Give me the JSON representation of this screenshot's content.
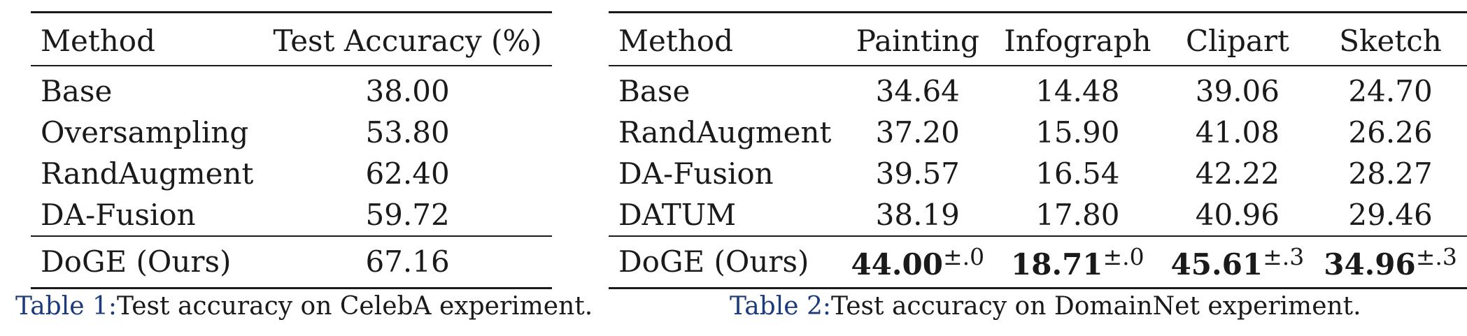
{
  "table1": {
    "headers": [
      "Method",
      "Test Accuracy (%)"
    ],
    "rows": [
      [
        "Base",
        "38.00"
      ],
      [
        "Oversampling",
        "53.80"
      ],
      [
        "RandAugment",
        "62.40"
      ],
      [
        "DA-Fusion",
        "59.72"
      ]
    ],
    "ours": {
      "method": "DoGE (Ours)",
      "value": "67.16"
    },
    "caption_label": "Table 1:",
    "caption_text": "Test accuracy on CelebA experiment."
  },
  "table2": {
    "headers": [
      "Method",
      "Painting",
      "Infograph",
      "Clipart",
      "Sketch"
    ],
    "rows": [
      [
        "Base",
        "34.64",
        "14.48",
        "39.06",
        "24.70"
      ],
      [
        "RandAugment",
        "37.20",
        "15.90",
        "41.08",
        "26.26"
      ],
      [
        "DA-Fusion",
        "39.57",
        "16.54",
        "42.22",
        "28.27"
      ],
      [
        "DATUM",
        "38.19",
        "17.80",
        "40.96",
        "29.46"
      ]
    ],
    "ours": {
      "method": "DoGE (Ours)",
      "values": [
        "44.00",
        "18.71",
        "45.61",
        "34.96"
      ],
      "stds": [
        "±.0",
        "±.0",
        "±.3",
        "±.3"
      ]
    },
    "caption_label": "Table 2:",
    "caption_text": "Test accuracy on DomainNet experiment."
  },
  "colors": {
    "text": "#1a1a1a",
    "caption_ref": "#1d3a7a"
  }
}
